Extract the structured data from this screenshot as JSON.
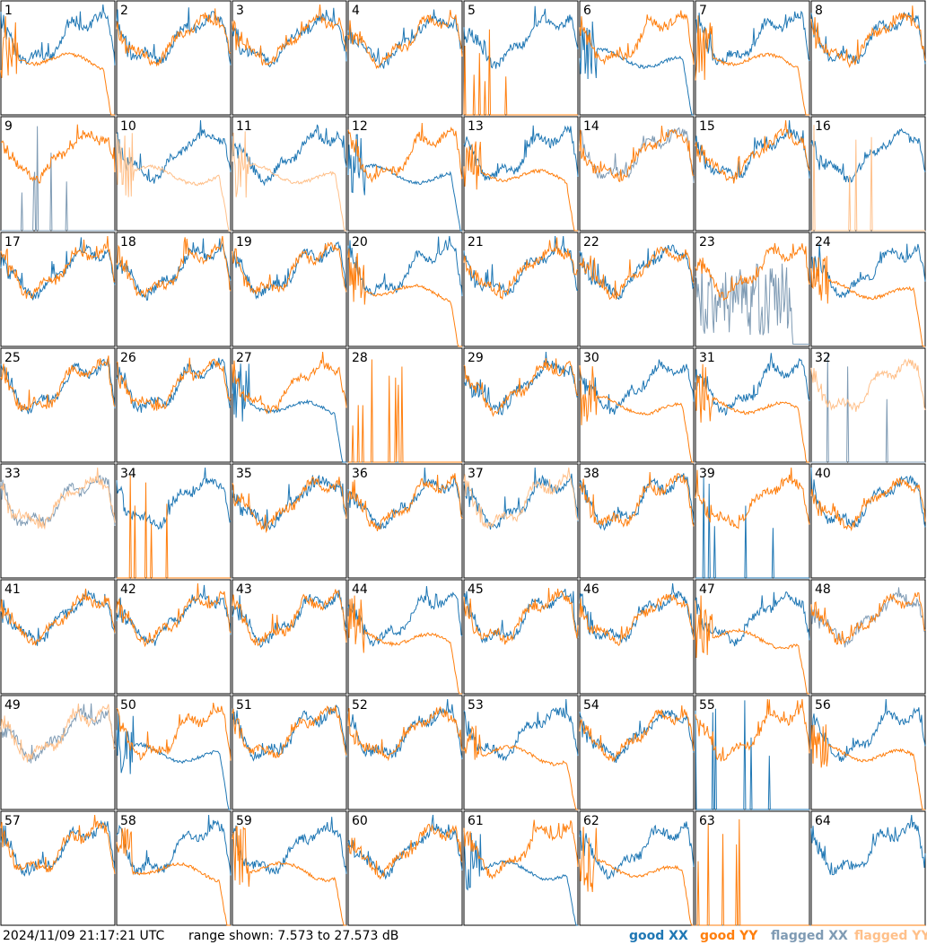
{
  "timestamp": "2024/11/09 21:17:21 UTC",
  "range": {
    "text": "range shown: 7.573 to 27.573 dB",
    "min_db": 7.573,
    "max_db": 27.573
  },
  "legend": [
    {
      "label": "good XX",
      "color": "#1f77b4",
      "key": "gx"
    },
    {
      "label": "good YY",
      "color": "#ff7f0e",
      "key": "gy"
    },
    {
      "label": "flagged XX",
      "color": "#7f9bb4",
      "key": "fx"
    },
    {
      "label": "flagged YY",
      "color": "#ffc08a",
      "key": "fy"
    }
  ],
  "chart_data": {
    "type": "line",
    "grid": "8x8 small multiples",
    "y_unit": "dB",
    "ylim": [
      7.573,
      27.573
    ],
    "panels": [
      {
        "n": 1,
        "xx": "g",
        "yy": "g",
        "yshape": "drop"
      },
      {
        "n": 2,
        "xx": "g",
        "yy": "g",
        "yshape": "norm"
      },
      {
        "n": 3,
        "xx": "g",
        "yy": "g",
        "yshape": "norm"
      },
      {
        "n": 4,
        "xx": "g",
        "yy": "g",
        "yshape": "norm"
      },
      {
        "n": 5,
        "xx": "g",
        "yy": "g",
        "xshape": "norm",
        "yshape": "spikes"
      },
      {
        "n": 6,
        "xx": "g",
        "yy": "g",
        "xshape": "drop",
        "yshape": "norm"
      },
      {
        "n": 7,
        "xx": "g",
        "yy": "g",
        "yshape": "drop"
      },
      {
        "n": 8,
        "xx": "g",
        "yy": "g",
        "yshape": "norm"
      },
      {
        "n": 9,
        "xx": "f",
        "yy": "g",
        "xshape": "spikes",
        "yshape": "norm"
      },
      {
        "n": 10,
        "xx": "g",
        "yy": "f",
        "yshape": "drop"
      },
      {
        "n": 11,
        "xx": "g",
        "yy": "f",
        "yshape": "drop"
      },
      {
        "n": 12,
        "xx": "g",
        "yy": "g",
        "xshape": "drop",
        "yshape": "norm"
      },
      {
        "n": 13,
        "xx": "g",
        "yy": "g",
        "yshape": "drop"
      },
      {
        "n": 14,
        "xx": "f",
        "yy": "g",
        "yshape": "norm"
      },
      {
        "n": 15,
        "xx": "g",
        "yy": "g",
        "yshape": "norm"
      },
      {
        "n": 16,
        "xx": "g",
        "yy": "f",
        "yshape": "spikes"
      },
      {
        "n": 17,
        "xx": "g",
        "yy": "g",
        "yshape": "norm"
      },
      {
        "n": 18,
        "xx": "g",
        "yy": "g",
        "yshape": "norm"
      },
      {
        "n": 19,
        "xx": "g",
        "yy": "g",
        "yshape": "norm"
      },
      {
        "n": 20,
        "xx": "g",
        "yy": "g",
        "yshape": "drop"
      },
      {
        "n": 21,
        "xx": "g",
        "yy": "g",
        "yshape": "norm"
      },
      {
        "n": 22,
        "xx": "g",
        "yy": "g",
        "yshape": "norm"
      },
      {
        "n": 23,
        "xx": "f",
        "yy": "g",
        "xshape": "noisy",
        "yshape": "norm"
      },
      {
        "n": 24,
        "xx": "g",
        "yy": "g",
        "yshape": "drop"
      },
      {
        "n": 25,
        "xx": "g",
        "yy": "g",
        "yshape": "norm"
      },
      {
        "n": 26,
        "xx": "g",
        "yy": "g",
        "yshape": "norm"
      },
      {
        "n": 27,
        "xx": "g",
        "yy": "g",
        "xshape": "drop",
        "yshape": "norm"
      },
      {
        "n": 28,
        "xx": "g",
        "yy": "g",
        "xshape": "flat",
        "yshape": "spikes"
      },
      {
        "n": 29,
        "xx": "g",
        "yy": "g",
        "yshape": "norm"
      },
      {
        "n": 30,
        "xx": "g",
        "yy": "g",
        "yshape": "drop"
      },
      {
        "n": 31,
        "xx": "g",
        "yy": "g",
        "yshape": "drop"
      },
      {
        "n": 32,
        "xx": "f",
        "yy": "f",
        "xshape": "spikes",
        "yshape": "norm"
      },
      {
        "n": 33,
        "xx": "f",
        "yy": "f",
        "yshape": "norm"
      },
      {
        "n": 34,
        "xx": "g",
        "yy": "g",
        "xshape": "norm",
        "yshape": "spikes"
      },
      {
        "n": 35,
        "xx": "g",
        "yy": "g",
        "yshape": "norm"
      },
      {
        "n": 36,
        "xx": "g",
        "yy": "g",
        "yshape": "norm"
      },
      {
        "n": 37,
        "xx": "g",
        "yy": "f",
        "yshape": "norm"
      },
      {
        "n": 38,
        "xx": "g",
        "yy": "g",
        "yshape": "norm"
      },
      {
        "n": 39,
        "xx": "g",
        "yy": "g",
        "xshape": "spikes",
        "yshape": "norm"
      },
      {
        "n": 40,
        "xx": "g",
        "yy": "g",
        "yshape": "norm"
      },
      {
        "n": 41,
        "xx": "g",
        "yy": "g",
        "yshape": "norm"
      },
      {
        "n": 42,
        "xx": "g",
        "yy": "g",
        "yshape": "norm"
      },
      {
        "n": 43,
        "xx": "g",
        "yy": "g",
        "yshape": "norm"
      },
      {
        "n": 44,
        "xx": "g",
        "yy": "g",
        "yshape": "drop"
      },
      {
        "n": 45,
        "xx": "g",
        "yy": "g",
        "yshape": "norm"
      },
      {
        "n": 46,
        "xx": "g",
        "yy": "g",
        "yshape": "norm"
      },
      {
        "n": 47,
        "xx": "g",
        "yy": "g",
        "yshape": "drop"
      },
      {
        "n": 48,
        "xx": "f",
        "yy": "g",
        "yshape": "norm"
      },
      {
        "n": 49,
        "xx": "f",
        "yy": "f",
        "yshape": "norm"
      },
      {
        "n": 50,
        "xx": "g",
        "yy": "g",
        "xshape": "drop",
        "yshape": "norm"
      },
      {
        "n": 51,
        "xx": "g",
        "yy": "g",
        "yshape": "norm"
      },
      {
        "n": 52,
        "xx": "g",
        "yy": "g",
        "yshape": "norm"
      },
      {
        "n": 53,
        "xx": "g",
        "yy": "g",
        "yshape": "drop"
      },
      {
        "n": 54,
        "xx": "g",
        "yy": "g",
        "yshape": "norm"
      },
      {
        "n": 55,
        "xx": "g",
        "yy": "g",
        "xshape": "spikes",
        "yshape": "norm"
      },
      {
        "n": 56,
        "xx": "g",
        "yy": "g",
        "yshape": "drop"
      },
      {
        "n": 57,
        "xx": "g",
        "yy": "g",
        "yshape": "norm"
      },
      {
        "n": 58,
        "xx": "g",
        "yy": "g",
        "yshape": "drop"
      },
      {
        "n": 59,
        "xx": "g",
        "yy": "g",
        "yshape": "drop"
      },
      {
        "n": 60,
        "xx": "g",
        "yy": "g",
        "yshape": "norm"
      },
      {
        "n": 61,
        "xx": "g",
        "yy": "g",
        "xshape": "drop",
        "yshape": "norm"
      },
      {
        "n": 62,
        "xx": "g",
        "yy": "g",
        "yshape": "drop"
      },
      {
        "n": 63,
        "xx": "g",
        "yy": "g",
        "xshape": "flat",
        "yshape": "spikes"
      },
      {
        "n": 64,
        "xx": "g",
        "yy": "g",
        "yshape": "flat"
      }
    ]
  }
}
